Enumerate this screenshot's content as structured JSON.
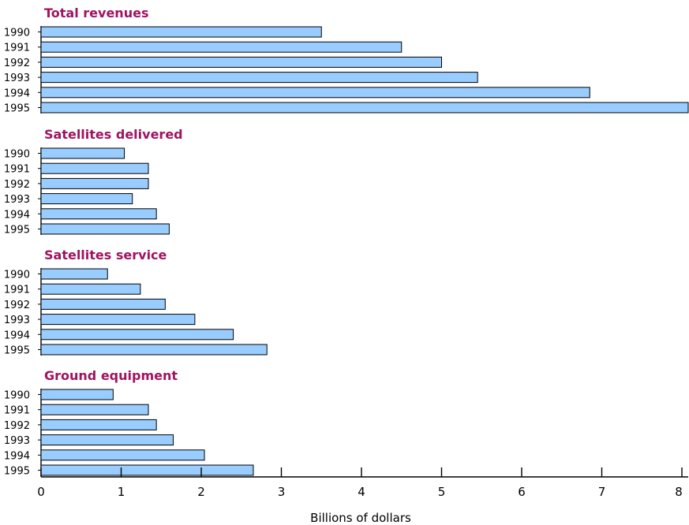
{
  "colors": {
    "title": "#a0135f",
    "bar_fill": "#99ccff",
    "bar_stroke": "#000000"
  },
  "chart_data": {
    "type": "bar",
    "orientation": "horizontal",
    "xlabel": "Billions of dollars",
    "xlim": [
      0,
      8
    ],
    "xticks": [
      "0",
      "1",
      "2",
      "3",
      "4",
      "5",
      "6",
      "7",
      "8"
    ],
    "grid": false,
    "panels": [
      {
        "title": "Total revenues",
        "categories": [
          "1990",
          "1991",
          "1992",
          "1993",
          "1994",
          "1995"
        ],
        "values": [
          3.5,
          4.5,
          5.0,
          5.45,
          6.85,
          8.1
        ]
      },
      {
        "title": "Satellites delivered",
        "categories": [
          "1990",
          "1991",
          "1992",
          "1993",
          "1994",
          "1995"
        ],
        "values": [
          1.04,
          1.34,
          1.34,
          1.14,
          1.44,
          1.6
        ]
      },
      {
        "title": "Satellites service",
        "categories": [
          "1990",
          "1991",
          "1992",
          "1993",
          "1994",
          "1995"
        ],
        "values": [
          0.83,
          1.24,
          1.55,
          1.92,
          2.4,
          2.82
        ]
      },
      {
        "title": "Ground equipment",
        "categories": [
          "1990",
          "1991",
          "1992",
          "1993",
          "1994",
          "1995"
        ],
        "values": [
          0.9,
          1.34,
          1.44,
          1.65,
          2.04,
          2.65
        ]
      }
    ]
  }
}
